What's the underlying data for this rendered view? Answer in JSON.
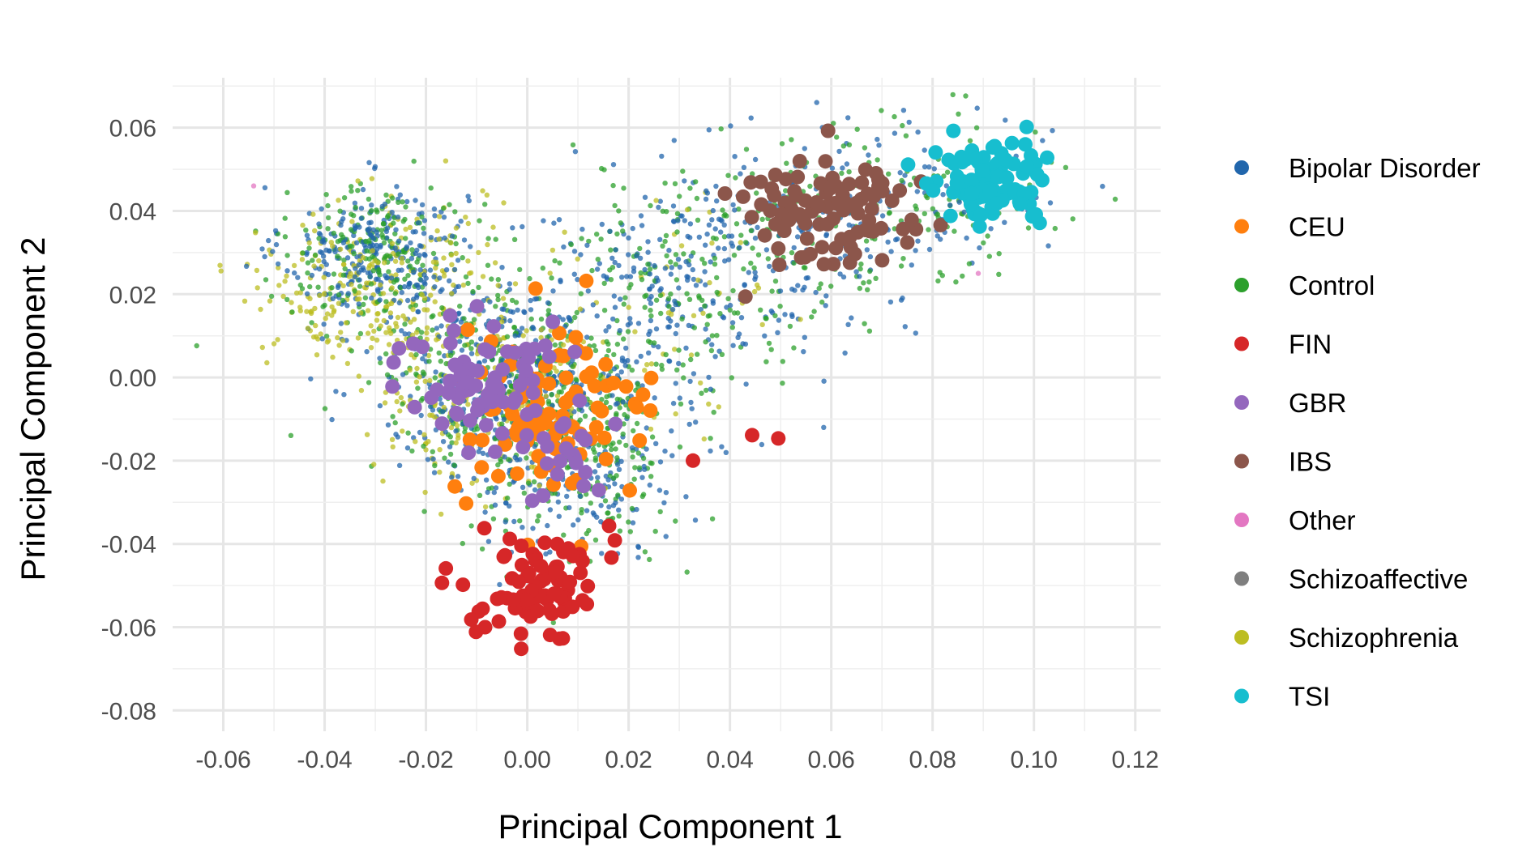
{
  "chart_data": {
    "type": "scatter",
    "title": "",
    "xlabel": "Principal Component 1",
    "ylabel": "Principal Component 2",
    "xlim": [
      -0.07,
      0.125
    ],
    "ylim": [
      -0.085,
      0.072
    ],
    "x_ticks": [
      -0.06,
      -0.04,
      -0.02,
      0.0,
      0.02,
      0.04,
      0.06,
      0.08,
      0.1,
      0.12
    ],
    "x_tick_labels": [
      "-0.06",
      "-0.04",
      "-0.02",
      "0.00",
      "0.02",
      "0.04",
      "0.06",
      "0.08",
      "0.10",
      "0.12"
    ],
    "y_ticks": [
      -0.08,
      -0.06,
      -0.04,
      -0.02,
      0.0,
      0.02,
      0.04,
      0.06
    ],
    "y_tick_labels": [
      "-0.08",
      "-0.06",
      "-0.04",
      "-0.02",
      "0.00",
      "0.02",
      "0.04",
      "0.06"
    ],
    "grid": true,
    "legend_position": "right",
    "series": [
      {
        "name": "Bipolar Disorder",
        "color": "#2166ac",
        "size": "small",
        "clusters": [
          {
            "cx": -0.03,
            "cy": 0.03,
            "sx": 0.009,
            "sy": 0.008,
            "n": 260
          },
          {
            "cx": -0.005,
            "cy": 0.0,
            "sx": 0.013,
            "sy": 0.012,
            "n": 360
          },
          {
            "cx": 0.01,
            "cy": -0.02,
            "sx": 0.01,
            "sy": 0.012,
            "n": 200
          },
          {
            "cx": 0.03,
            "cy": 0.02,
            "sx": 0.016,
            "sy": 0.014,
            "n": 260
          },
          {
            "cx": 0.06,
            "cy": 0.04,
            "sx": 0.014,
            "sy": 0.01,
            "n": 160
          },
          {
            "cx": 0.09,
            "cy": 0.046,
            "sx": 0.009,
            "sy": 0.008,
            "n": 50
          }
        ]
      },
      {
        "name": "CEU",
        "color": "#ff7f0e",
        "size": "large",
        "clusters": [
          {
            "cx": 0.005,
            "cy": -0.01,
            "sx": 0.01,
            "sy": 0.01,
            "n": 95
          }
        ]
      },
      {
        "name": "Control",
        "color": "#2ca02c",
        "size": "small",
        "clusters": [
          {
            "cx": -0.03,
            "cy": 0.03,
            "sx": 0.009,
            "sy": 0.008,
            "n": 200
          },
          {
            "cx": -0.005,
            "cy": -0.002,
            "sx": 0.013,
            "sy": 0.012,
            "n": 330
          },
          {
            "cx": 0.01,
            "cy": -0.02,
            "sx": 0.01,
            "sy": 0.012,
            "n": 200
          },
          {
            "cx": 0.03,
            "cy": 0.02,
            "sx": 0.016,
            "sy": 0.014,
            "n": 200
          },
          {
            "cx": 0.06,
            "cy": 0.04,
            "sx": 0.014,
            "sy": 0.01,
            "n": 140
          },
          {
            "cx": 0.09,
            "cy": 0.046,
            "sx": 0.01,
            "sy": 0.009,
            "n": 60
          }
        ]
      },
      {
        "name": "FIN",
        "color": "#d62728",
        "size": "large",
        "clusters": [
          {
            "cx": 0.003,
            "cy": -0.05,
            "sx": 0.006,
            "sy": 0.007,
            "n": 85
          },
          {
            "cx": 0.04,
            "cy": -0.02,
            "sx": 0.005,
            "sy": 0.003,
            "n": 3
          }
        ]
      },
      {
        "name": "GBR",
        "color": "#9467bd",
        "size": "large",
        "clusters": [
          {
            "cx": -0.01,
            "cy": 0.0,
            "sx": 0.008,
            "sy": 0.008,
            "n": 75
          },
          {
            "cx": 0.008,
            "cy": -0.018,
            "sx": 0.005,
            "sy": 0.006,
            "n": 20
          }
        ]
      },
      {
        "name": "IBS",
        "color": "#8c564b",
        "size": "large",
        "clusters": [
          {
            "cx": 0.058,
            "cy": 0.04,
            "sx": 0.009,
            "sy": 0.007,
            "n": 95
          }
        ]
      },
      {
        "name": "Other",
        "color": "#e377c2",
        "size": "small",
        "points": [
          [
            -0.054,
            0.046
          ],
          [
            0.089,
            0.025
          ]
        ]
      },
      {
        "name": "Schizoaffective",
        "color": "#7f7f7f",
        "size": "small",
        "points": []
      },
      {
        "name": "Schizophrenia",
        "color": "#bcbd22",
        "size": "small",
        "clusters": [
          {
            "cx": -0.03,
            "cy": 0.022,
            "sx": 0.011,
            "sy": 0.01,
            "n": 270
          },
          {
            "cx": -0.008,
            "cy": -0.005,
            "sx": 0.011,
            "sy": 0.01,
            "n": 200
          },
          {
            "cx": 0.02,
            "cy": 0.01,
            "sx": 0.018,
            "sy": 0.014,
            "n": 70
          }
        ]
      },
      {
        "name": "TSI",
        "color": "#17becf",
        "size": "large",
        "clusters": [
          {
            "cx": 0.092,
            "cy": 0.047,
            "sx": 0.006,
            "sy": 0.005,
            "n": 95
          }
        ]
      }
    ]
  }
}
